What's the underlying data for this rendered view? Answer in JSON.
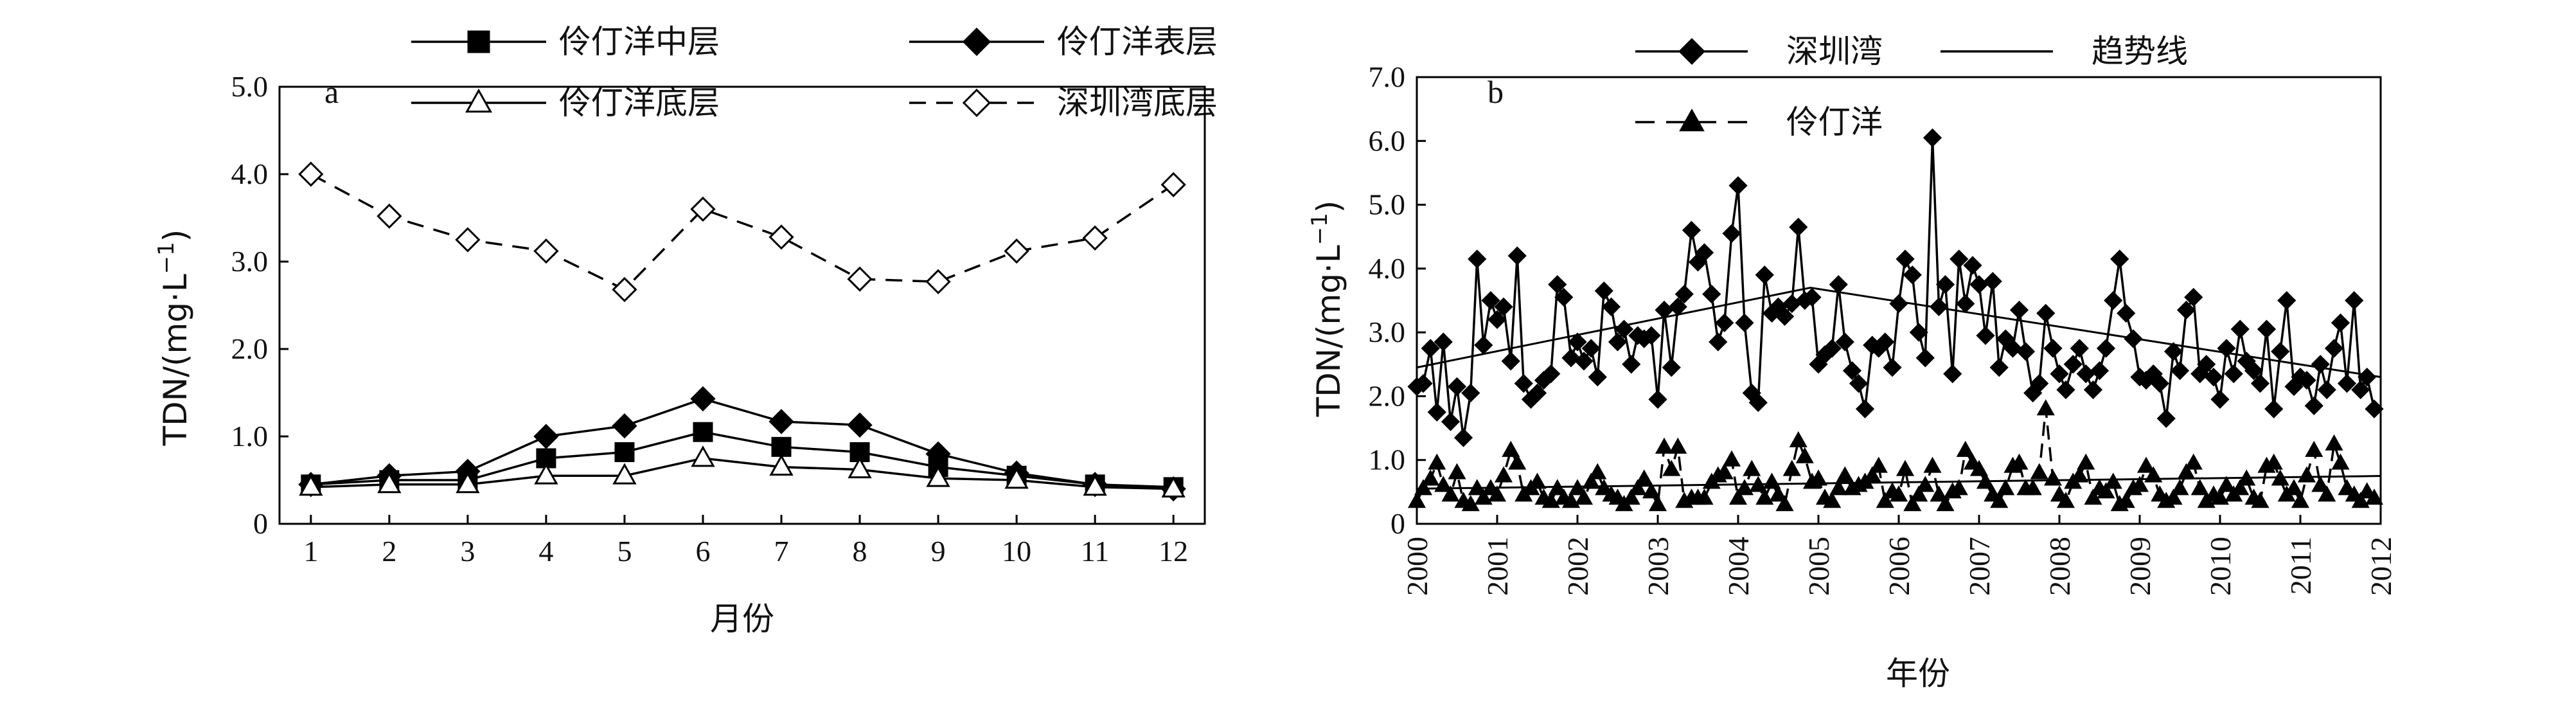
{
  "chart_data": [
    {
      "panel": "a",
      "type": "line",
      "xlabel": "月份",
      "ylabel": "TDN/(mg·L",
      "ylabel_sup": "−1",
      "ylabel_close": ")",
      "xlim": [
        0.6,
        12.4
      ],
      "ylim": [
        0,
        5.0
      ],
      "x_ticks": [
        1,
        2,
        3,
        4,
        5,
        6,
        7,
        8,
        9,
        10,
        11,
        12
      ],
      "y_ticks": [
        "0",
        "1.0",
        "2.0",
        "3.0",
        "4.0",
        "5.0"
      ],
      "x": [
        1,
        2,
        3,
        4,
        5,
        6,
        7,
        8,
        9,
        10,
        11,
        12
      ],
      "series": [
        {
          "name": "伶仃洋中层",
          "style": "solid",
          "marker": "square-filled",
          "values": [
            0.45,
            0.5,
            0.5,
            0.75,
            0.82,
            1.05,
            0.88,
            0.82,
            0.65,
            0.55,
            0.45,
            0.42
          ]
        },
        {
          "name": "伶仃洋表层",
          "style": "solid",
          "marker": "diamond-filled",
          "values": [
            0.45,
            0.55,
            0.6,
            1.0,
            1.12,
            1.43,
            1.17,
            1.13,
            0.8,
            0.58,
            0.45,
            0.4
          ]
        },
        {
          "name": "伶仃洋底层",
          "style": "solid",
          "marker": "triangle-open",
          "values": [
            0.42,
            0.45,
            0.45,
            0.55,
            0.55,
            0.75,
            0.65,
            0.62,
            0.52,
            0.5,
            0.42,
            0.4
          ]
        },
        {
          "name": "深圳湾底层",
          "style": "dashed",
          "marker": "diamond-open",
          "values": [
            4.0,
            3.52,
            3.25,
            3.12,
            2.68,
            3.6,
            3.28,
            2.8,
            2.77,
            3.12,
            3.27,
            3.88
          ]
        }
      ],
      "legend": "top"
    },
    {
      "panel": "b",
      "type": "line",
      "xlabel": "年份",
      "ylabel": "TDN/(mg·L",
      "ylabel_sup": "−1",
      "ylabel_close": ")",
      "xlim": [
        2000,
        2012
      ],
      "ylim": [
        0,
        7.0
      ],
      "x_ticks": [
        "2000",
        "2001",
        "2002",
        "2003",
        "2004",
        "2005",
        "2006",
        "2007",
        "2008",
        "2009",
        "2010",
        "2011",
        "2012"
      ],
      "y_ticks": [
        "0",
        "1.0",
        "2.0",
        "3.0",
        "4.0",
        "5.0",
        "6.0",
        "7.0"
      ],
      "series": [
        {
          "name": "深圳湾",
          "style": "solid",
          "marker": "diamond-filled",
          "x": [
            2000.0,
            2000.08,
            2000.17,
            2000.25,
            2000.33,
            2000.42,
            2000.5,
            2000.58,
            2000.67,
            2000.75,
            2000.83,
            2000.92,
            2001.0,
            2001.08,
            2001.17,
            2001.25,
            2001.33,
            2001.42,
            2001.5,
            2001.58,
            2001.67,
            2001.75,
            2001.83,
            2001.92,
            2002.0,
            2002.08,
            2002.17,
            2002.25,
            2002.33,
            2002.42,
            2002.5,
            2002.58,
            2002.67,
            2002.75,
            2002.83,
            2002.92,
            2003.0,
            2003.08,
            2003.17,
            2003.25,
            2003.33,
            2003.42,
            2003.5,
            2003.58,
            2003.67,
            2003.75,
            2003.83,
            2003.92,
            2004.0,
            2004.08,
            2004.17,
            2004.25,
            2004.33,
            2004.42,
            2004.5,
            2004.58,
            2004.67,
            2004.75,
            2004.83,
            2004.92,
            2005.0,
            2005.08,
            2005.17,
            2005.25,
            2005.33,
            2005.42,
            2005.5,
            2005.58,
            2005.67,
            2005.75,
            2005.83,
            2005.92,
            2006.0,
            2006.08,
            2006.17,
            2006.25,
            2006.33,
            2006.42,
            2006.5,
            2006.58,
            2006.67,
            2006.75,
            2006.83,
            2006.92,
            2007.0,
            2007.08,
            2007.17,
            2007.25,
            2007.33,
            2007.42,
            2007.5,
            2007.58,
            2007.67,
            2007.75,
            2007.83,
            2007.92,
            2008.0,
            2008.08,
            2008.17,
            2008.25,
            2008.33,
            2008.42,
            2008.5,
            2008.58,
            2008.67,
            2008.75,
            2008.83,
            2008.92,
            2009.0,
            2009.08,
            2009.17,
            2009.25,
            2009.33,
            2009.42,
            2009.5,
            2009.58,
            2009.67,
            2009.75,
            2009.83,
            2009.92,
            2010.0,
            2010.08,
            2010.17,
            2010.25,
            2010.33,
            2010.42,
            2010.5,
            2010.58,
            2010.67,
            2010.75,
            2010.83,
            2010.92,
            2011.0,
            2011.08,
            2011.17,
            2011.25,
            2011.33,
            2011.42,
            2011.5,
            2011.58,
            2011.67,
            2011.75,
            2011.83,
            2011.92
          ],
          "values": [
            2.15,
            2.2,
            2.75,
            1.75,
            2.85,
            1.6,
            2.15,
            1.35,
            2.05,
            4.15,
            2.8,
            3.5,
            3.2,
            3.4,
            2.55,
            4.2,
            2.2,
            1.95,
            2.05,
            2.25,
            2.35,
            3.75,
            3.55,
            2.6,
            2.85,
            2.55,
            2.75,
            2.3,
            3.65,
            3.4,
            2.85,
            3.05,
            2.5,
            2.95,
            2.9,
            2.95,
            1.95,
            3.35,
            2.45,
            3.4,
            3.6,
            4.6,
            4.1,
            4.25,
            3.6,
            2.85,
            3.15,
            4.55,
            5.3,
            3.15,
            2.05,
            1.9,
            3.9,
            3.3,
            3.4,
            3.25,
            3.45,
            4.65,
            3.5,
            3.55,
            2.5,
            2.65,
            2.75,
            3.75,
            2.85,
            2.4,
            2.2,
            1.8,
            2.8,
            2.75,
            2.85,
            2.45,
            3.45,
            4.15,
            3.9,
            3.0,
            2.6,
            6.05,
            3.4,
            3.75,
            2.35,
            4.15,
            3.45,
            4.05,
            3.75,
            2.95,
            3.8,
            2.45,
            2.9,
            2.75,
            3.35,
            2.7,
            2.05,
            2.2,
            3.3,
            2.75,
            2.35,
            2.1,
            2.5,
            2.75,
            2.35,
            2.1,
            2.4,
            2.75,
            3.5,
            4.15,
            3.3,
            2.9,
            2.3,
            2.25,
            2.35,
            2.2,
            1.65,
            2.7,
            2.4,
            3.35,
            3.55,
            2.35,
            2.5,
            2.3,
            1.95,
            2.75,
            2.35,
            3.05,
            2.55,
            2.4,
            2.2,
            3.05,
            1.8,
            2.7,
            3.5,
            2.15,
            2.3,
            2.25,
            1.85,
            2.5,
            2.1,
            2.75,
            3.15,
            2.2,
            3.5,
            2.1,
            2.3,
            1.8
          ]
        },
        {
          "name": "伶仃洋",
          "style": "dashed",
          "marker": "triangle-filled",
          "x": [
            2000.0,
            2000.08,
            2000.17,
            2000.25,
            2000.33,
            2000.42,
            2000.5,
            2000.58,
            2000.67,
            2000.75,
            2000.83,
            2000.92,
            2001.0,
            2001.08,
            2001.17,
            2001.25,
            2001.33,
            2001.42,
            2001.5,
            2001.58,
            2001.67,
            2001.75,
            2001.83,
            2001.92,
            2002.0,
            2002.08,
            2002.17,
            2002.25,
            2002.33,
            2002.42,
            2002.5,
            2002.58,
            2002.67,
            2002.75,
            2002.83,
            2002.92,
            2003.0,
            2003.08,
            2003.17,
            2003.25,
            2003.33,
            2003.42,
            2003.5,
            2003.58,
            2003.67,
            2003.75,
            2003.83,
            2003.92,
            2004.0,
            2004.08,
            2004.17,
            2004.25,
            2004.33,
            2004.42,
            2004.5,
            2004.58,
            2004.67,
            2004.75,
            2004.83,
            2004.92,
            2005.0,
            2005.08,
            2005.17,
            2005.25,
            2005.33,
            2005.42,
            2005.5,
            2005.58,
            2005.67,
            2005.75,
            2005.83,
            2005.92,
            2006.0,
            2006.08,
            2006.17,
            2006.25,
            2006.33,
            2006.42,
            2006.5,
            2006.58,
            2006.67,
            2006.75,
            2006.83,
            2006.92,
            2007.0,
            2007.08,
            2007.17,
            2007.25,
            2007.33,
            2007.42,
            2007.5,
            2007.58,
            2007.67,
            2007.75,
            2007.83,
            2007.92,
            2008.0,
            2008.08,
            2008.17,
            2008.25,
            2008.33,
            2008.42,
            2008.5,
            2008.58,
            2008.67,
            2008.75,
            2008.83,
            2008.92,
            2009.0,
            2009.08,
            2009.17,
            2009.25,
            2009.33,
            2009.42,
            2009.5,
            2009.58,
            2009.67,
            2009.75,
            2009.83,
            2009.92,
            2010.0,
            2010.08,
            2010.17,
            2010.25,
            2010.33,
            2010.42,
            2010.5,
            2010.58,
            2010.67,
            2010.75,
            2010.83,
            2010.92,
            2011.0,
            2011.08,
            2011.17,
            2011.25,
            2011.33,
            2011.42,
            2011.5,
            2011.58,
            2011.67,
            2011.75,
            2011.83,
            2011.92
          ],
          "values": [
            0.35,
            0.55,
            0.7,
            0.95,
            0.6,
            0.45,
            0.8,
            0.35,
            0.3,
            0.55,
            0.4,
            0.55,
            0.45,
            0.75,
            1.15,
            0.95,
            0.45,
            0.55,
            0.65,
            0.4,
            0.35,
            0.55,
            0.4,
            0.35,
            0.55,
            0.4,
            0.65,
            0.8,
            0.55,
            0.45,
            0.4,
            0.3,
            0.4,
            0.55,
            0.7,
            0.5,
            0.3,
            1.2,
            0.85,
            1.2,
            0.35,
            0.4,
            0.4,
            0.4,
            0.65,
            0.75,
            0.8,
            1.0,
            0.4,
            0.55,
            0.85,
            0.6,
            0.4,
            0.65,
            0.45,
            0.3,
            0.85,
            1.3,
            1.05,
            0.65,
            0.7,
            0.4,
            0.35,
            0.55,
            0.75,
            0.55,
            0.6,
            0.65,
            0.75,
            0.9,
            0.35,
            0.5,
            0.45,
            0.85,
            0.3,
            0.45,
            0.6,
            0.9,
            0.45,
            0.3,
            0.5,
            0.55,
            1.15,
            0.95,
            0.85,
            0.65,
            0.45,
            0.35,
            0.55,
            0.9,
            0.95,
            0.55,
            0.55,
            0.8,
            1.8,
            0.7,
            0.45,
            0.35,
            0.65,
            0.75,
            0.95,
            0.4,
            0.55,
            0.5,
            0.65,
            0.3,
            0.35,
            0.55,
            0.6,
            0.9,
            0.75,
            0.45,
            0.35,
            0.4,
            0.55,
            0.8,
            0.95,
            0.55,
            0.35,
            0.45,
            0.4,
            0.6,
            0.45,
            0.55,
            0.7,
            0.4,
            0.35,
            0.9,
            0.95,
            0.7,
            0.45,
            0.55,
            0.35,
            0.75,
            1.15,
            0.6,
            0.45,
            1.25,
            0.95,
            0.55,
            0.45,
            0.35,
            0.5,
            0.4
          ]
        },
        {
          "name": "趋势线",
          "style": "solid",
          "marker": "none",
          "x": [
            2000.0,
            2004.9,
            2012.0
          ],
          "values": [
            2.45,
            3.7,
            2.3
          ]
        },
        {
          "name": "",
          "style": "solid",
          "marker": "none",
          "x": [
            2000.0,
            2012.0
          ],
          "values": [
            0.55,
            0.75
          ]
        }
      ],
      "legend": "top"
    }
  ]
}
